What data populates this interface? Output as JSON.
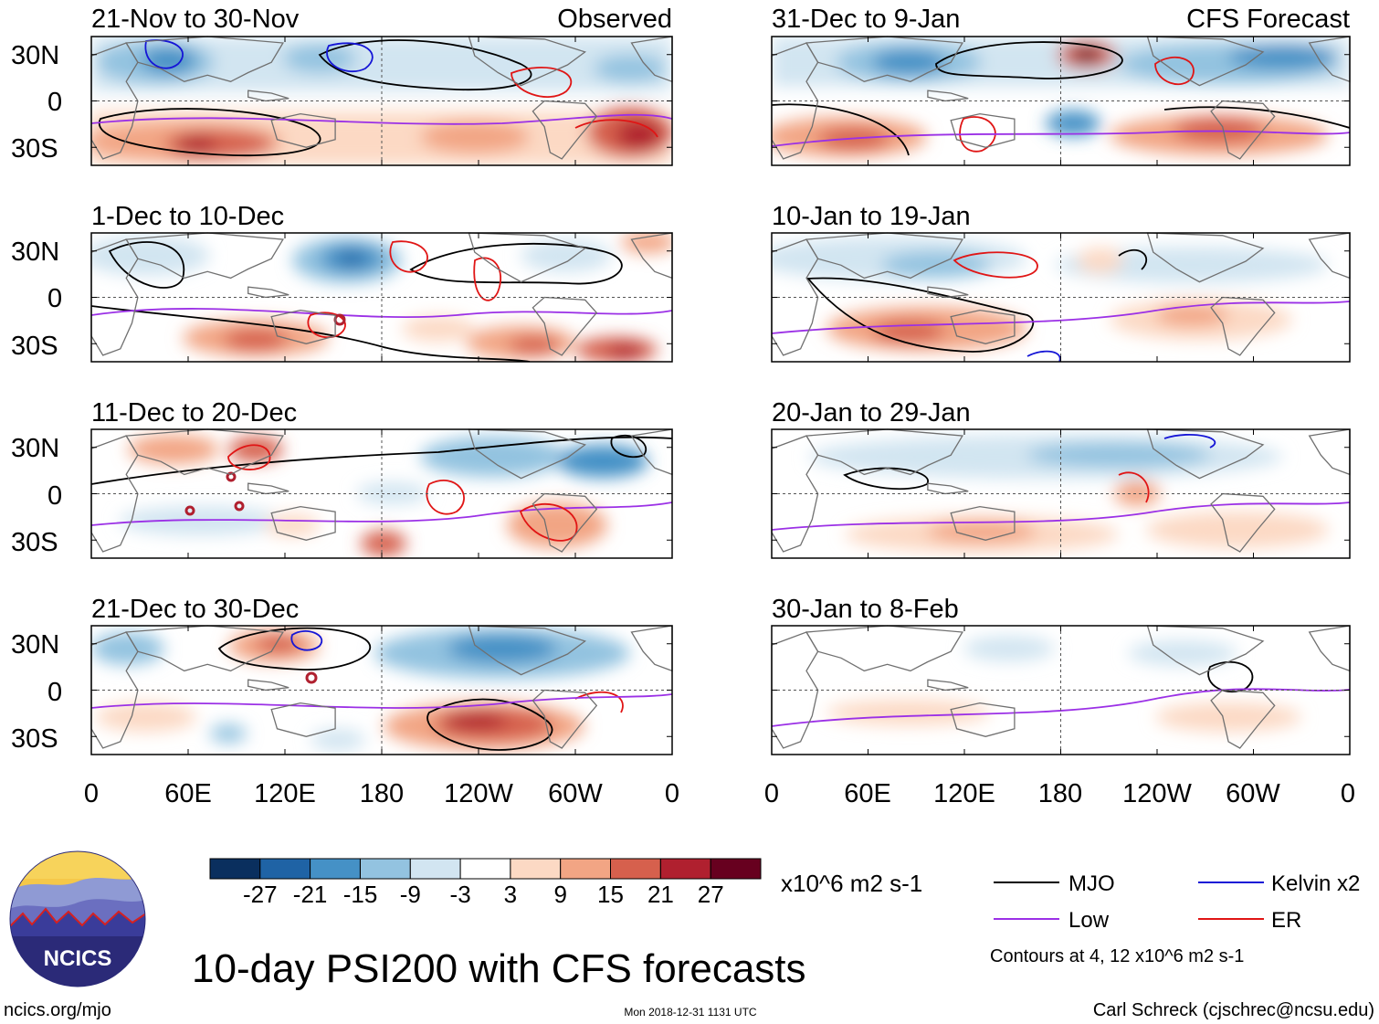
{
  "figure": {
    "title": "10-day PSI200 with CFS forecasts",
    "website": "ncics.org/mjo",
    "timestamp": "Mon 2018-12-31 1131 UTC",
    "credit": "Carl Schreck (cjschrec@ncsu.edu)",
    "logo_text": "NCICS"
  },
  "columns": {
    "left_label": "Observed",
    "right_label": "CFS Forecast"
  },
  "panels": [
    {
      "period": "21-Nov to 30-Nov",
      "source": "observed"
    },
    {
      "period": "1-Dec to 10-Dec",
      "source": "observed"
    },
    {
      "period": "11-Dec to 20-Dec",
      "source": "observed"
    },
    {
      "period": "21-Dec to 30-Dec",
      "source": "observed"
    },
    {
      "period": "31-Dec to 9-Jan",
      "source": "forecast"
    },
    {
      "period": "10-Jan to 19-Jan",
      "source": "forecast"
    },
    {
      "period": "20-Jan to 29-Jan",
      "source": "forecast"
    },
    {
      "period": "30-Jan to 8-Feb",
      "source": "forecast"
    }
  ],
  "axes": {
    "lat_labels": [
      "30N",
      "0",
      "30S"
    ],
    "lon_labels": [
      "0",
      "60E",
      "120E",
      "180",
      "120W",
      "60W",
      "0"
    ]
  },
  "colorbar": {
    "units": "x10^6 m2 s-1",
    "tick_labels": [
      "-27",
      "-21",
      "-15",
      "-9",
      "-3",
      "3",
      "9",
      "15",
      "21",
      "27"
    ],
    "colors": [
      "#0a2f5e",
      "#1f63a5",
      "#4591c6",
      "#93c3e0",
      "#d2e5f1",
      "#ffffff",
      "#fcd9c4",
      "#f2a584",
      "#d6604d",
      "#b0202f",
      "#67001f"
    ]
  },
  "legend": {
    "items": [
      {
        "label": "MJO",
        "color": "#000000"
      },
      {
        "label": "Kelvin x2",
        "color": "#1515d6"
      },
      {
        "label": "Low",
        "color": "#9b30e6"
      },
      {
        "label": "ER",
        "color": "#e01515"
      }
    ],
    "contour_note": "Contours at 4, 12 x10^6 m2 s-1"
  }
}
